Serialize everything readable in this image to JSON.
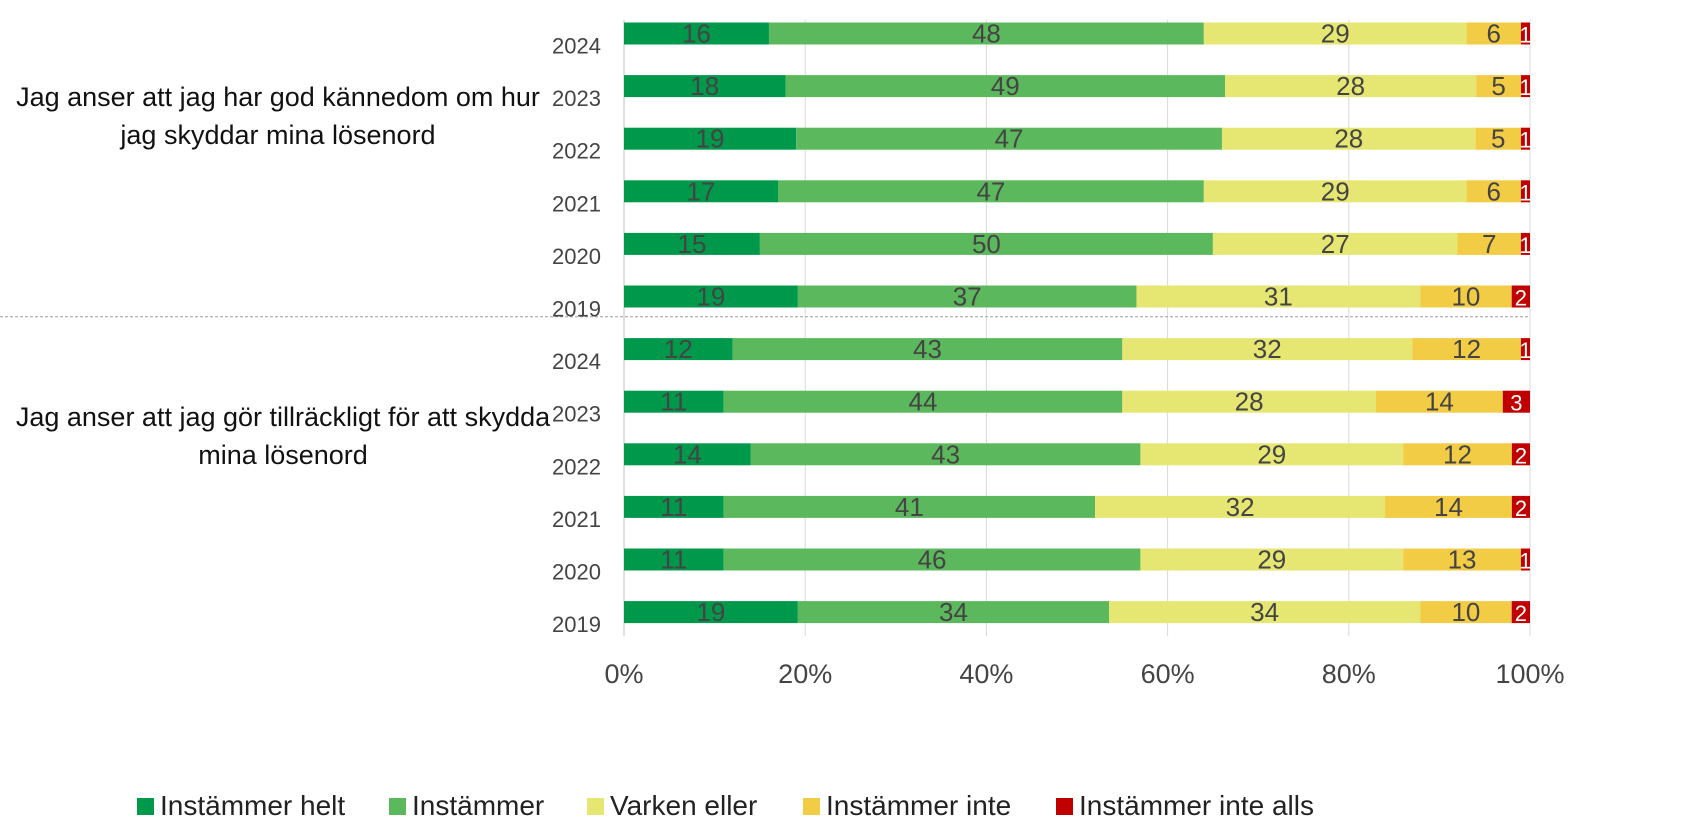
{
  "chart_data": {
    "type": "bar",
    "orientation": "horizontal",
    "stacked": "percent",
    "groups": [
      {
        "label": "Jag anser att jag har god kännedom om hur jag skyddar mina lösenord",
        "rows": [
          {
            "year": "2024",
            "values": [
              16,
              48,
              29,
              6,
              1
            ]
          },
          {
            "year": "2023",
            "values": [
              18,
              49,
              28,
              5,
              1
            ]
          },
          {
            "year": "2022",
            "values": [
              19,
              47,
              28,
              5,
              1
            ]
          },
          {
            "year": "2021",
            "values": [
              17,
              47,
              29,
              6,
              1
            ]
          },
          {
            "year": "2020",
            "values": [
              15,
              50,
              27,
              7,
              1
            ]
          },
          {
            "year": "2019",
            "values": [
              19,
              37,
              31,
              10,
              2
            ]
          }
        ]
      },
      {
        "label": "Jag anser att jag gör tillräckligt för att skydda mina lösenord",
        "rows": [
          {
            "year": "2024",
            "values": [
              12,
              43,
              32,
              12,
              1
            ]
          },
          {
            "year": "2023",
            "values": [
              11,
              44,
              28,
              14,
              3
            ]
          },
          {
            "year": "2022",
            "values": [
              14,
              43,
              29,
              12,
              2
            ]
          },
          {
            "year": "2021",
            "values": [
              11,
              41,
              32,
              14,
              2
            ]
          },
          {
            "year": "2020",
            "values": [
              11,
              46,
              29,
              13,
              1
            ]
          },
          {
            "year": "2019",
            "values": [
              19,
              34,
              34,
              10,
              2
            ]
          }
        ]
      }
    ],
    "series": [
      {
        "name": "Instämmer helt",
        "color": "#00994c"
      },
      {
        "name": "Instämmer",
        "color": "#5cb85c"
      },
      {
        "name": "Varken eller",
        "color": "#e6e672"
      },
      {
        "name": "Instämmer inte",
        "color": "#f2cc44"
      },
      {
        "name": "Instämmer inte alls",
        "color": "#c00000"
      }
    ],
    "label_colors": [
      "#444444",
      "#444444",
      "#444444",
      "#444444",
      "#ffffff"
    ],
    "x_ticks": [
      "0%",
      "20%",
      "40%",
      "60%",
      "80%",
      "100%"
    ],
    "xlim": [
      0,
      100
    ],
    "grid": true,
    "legend_position": "bottom"
  }
}
